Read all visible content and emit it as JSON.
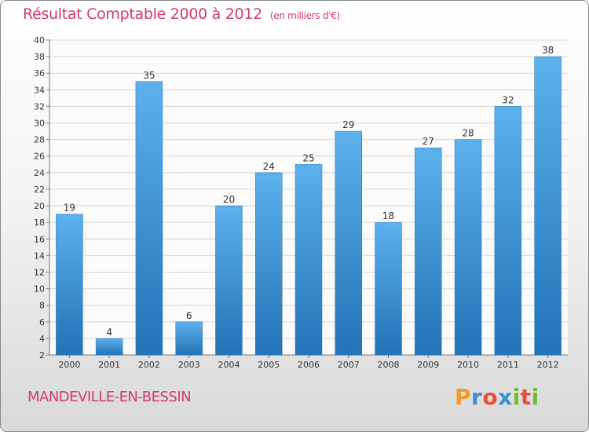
{
  "chart_data": {
    "type": "bar",
    "title": "Résultat Comptable 2000 à 2012",
    "unit": "(en milliers d'€)",
    "xlabel": "",
    "ylabel": "",
    "categories": [
      "2000",
      "2001",
      "2002",
      "2003",
      "2004",
      "2005",
      "2006",
      "2007",
      "2008",
      "2009",
      "2010",
      "2011",
      "2012"
    ],
    "values": [
      19,
      4,
      35,
      6,
      20,
      24,
      25,
      29,
      18,
      27,
      28,
      32,
      38
    ],
    "ylim": [
      2,
      40
    ],
    "yticks": [
      2,
      4,
      6,
      8,
      10,
      12,
      14,
      16,
      18,
      20,
      22,
      24,
      26,
      28,
      30,
      32,
      34,
      36,
      38,
      40
    ],
    "grid": "horizontal",
    "bar_color": "#3f95d8"
  },
  "footer": {
    "commune": "MANDEVILLE-EN-BESSIN",
    "logo_letters": [
      "P",
      "r",
      "o",
      "x",
      "i",
      "t",
      "i"
    ],
    "logo_colors": [
      "#f29a1f",
      "#3a8fd6",
      "#e94e3c",
      "#3a8fd6",
      "#6cbf2b",
      "#e94e3c",
      "#6cbf2b"
    ]
  },
  "colors": {
    "accent": "#d33a6e"
  }
}
